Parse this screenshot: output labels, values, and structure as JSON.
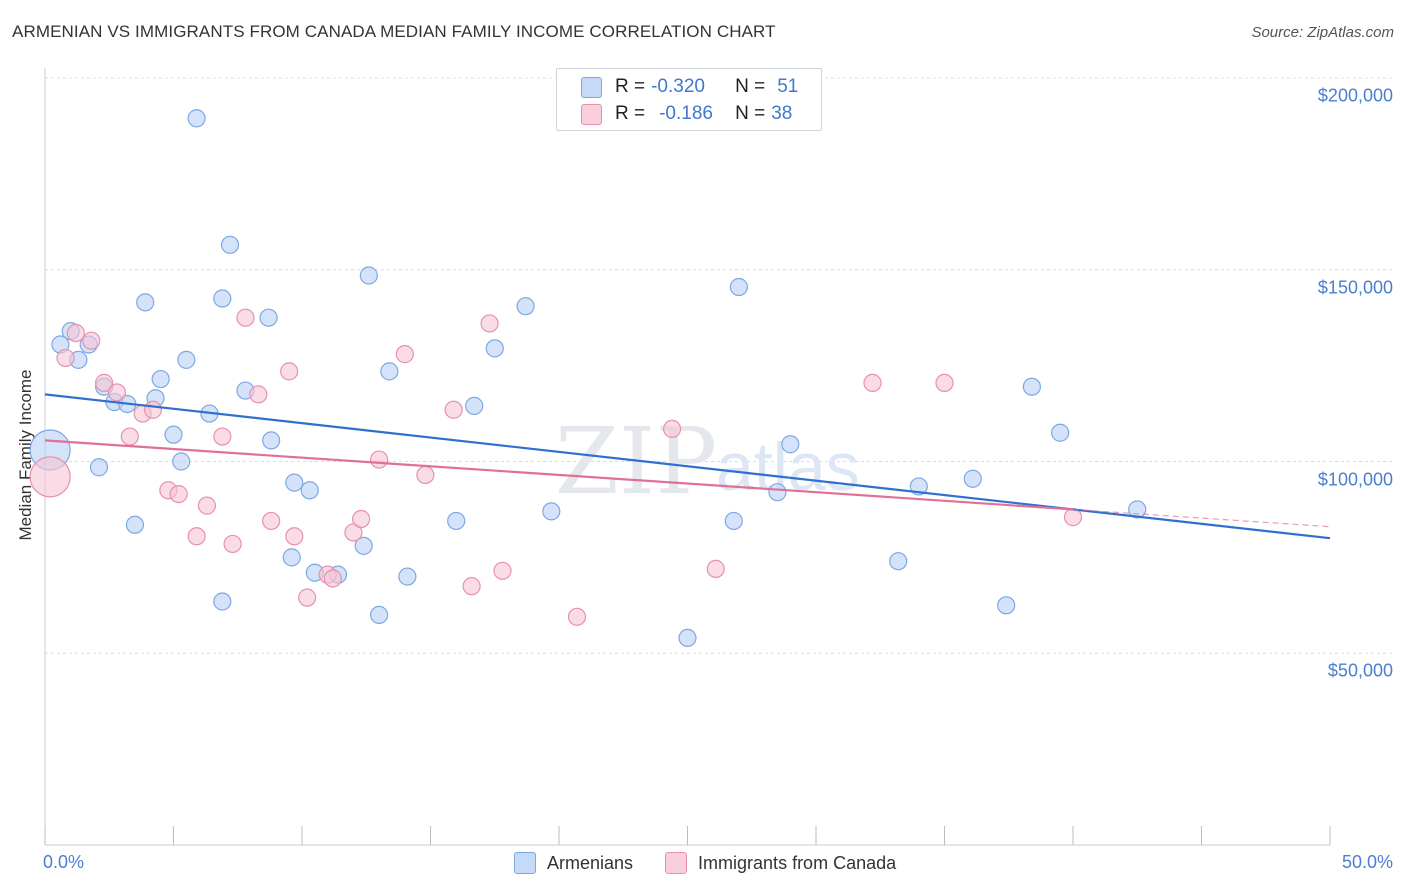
{
  "header": {
    "title": "ARMENIAN VS IMMIGRANTS FROM CANADA MEDIAN FAMILY INCOME CORRELATION CHART",
    "source": "Source: ZipAtlas.com"
  },
  "legend_top": {
    "rows": [
      {
        "r_label": "R =",
        "r_value": "-0.320",
        "n_label": "N =",
        "n_value": "51"
      },
      {
        "r_label": "R =",
        "r_value": "-0.186",
        "n_label": "N =",
        "n_value": "38"
      }
    ]
  },
  "watermark": {
    "zip": "ZIP",
    "atlas": "atlas"
  },
  "colors": {
    "armenians_fill": "#b8d1f5",
    "armenians_stroke": "#7ea8e3",
    "armenians_line": "#2f6fd0",
    "canada_fill": "#f7c5d5",
    "canada_stroke": "#e890ae",
    "canada_line": "#e07098",
    "tick_text": "#4a7fd0",
    "grid": "#d8dce2"
  },
  "chart_data": {
    "type": "scatter",
    "title": "ARMENIAN VS IMMIGRANTS FROM CANADA MEDIAN FAMILY INCOME CORRELATION CHART",
    "xlabel": "",
    "ylabel": "Median Family Income",
    "xlim": [
      0,
      50
    ],
    "ylim": [
      0,
      200000
    ],
    "x_tick_labels": [
      "0.0%",
      "50.0%"
    ],
    "y_ticks": [
      {
        "value": 50000,
        "label": "$50,000"
      },
      {
        "value": 100000,
        "label": "$100,000"
      },
      {
        "value": 150000,
        "label": "$150,000"
      },
      {
        "value": 200000,
        "label": "$200,000"
      }
    ],
    "grid": true,
    "legend_position": "bottom",
    "series": [
      {
        "name": "Armenians",
        "r": -0.32,
        "n": 51,
        "trend": {
          "x": [
            0,
            50
          ],
          "y": [
            117500,
            80000
          ]
        },
        "points": [
          {
            "x": 0.2,
            "y": 103000,
            "large": true
          },
          {
            "x": 0.6,
            "y": 130500
          },
          {
            "x": 1.0,
            "y": 134000
          },
          {
            "x": 1.3,
            "y": 126500
          },
          {
            "x": 1.7,
            "y": 130500
          },
          {
            "x": 2.1,
            "y": 98500
          },
          {
            "x": 2.3,
            "y": 119500
          },
          {
            "x": 2.7,
            "y": 115500
          },
          {
            "x": 3.2,
            "y": 115000
          },
          {
            "x": 3.5,
            "y": 83500
          },
          {
            "x": 3.9,
            "y": 141500
          },
          {
            "x": 4.3,
            "y": 116500
          },
          {
            "x": 4.5,
            "y": 121500
          },
          {
            "x": 5.0,
            "y": 107000
          },
          {
            "x": 5.3,
            "y": 100000
          },
          {
            "x": 5.5,
            "y": 126500
          },
          {
            "x": 5.9,
            "y": 189500
          },
          {
            "x": 6.4,
            "y": 112500
          },
          {
            "x": 6.9,
            "y": 142500
          },
          {
            "x": 6.9,
            "y": 63500
          },
          {
            "x": 7.2,
            "y": 156500
          },
          {
            "x": 7.8,
            "y": 118500
          },
          {
            "x": 8.7,
            "y": 137500
          },
          {
            "x": 8.8,
            "y": 105500
          },
          {
            "x": 9.6,
            "y": 75000
          },
          {
            "x": 9.7,
            "y": 94500
          },
          {
            "x": 10.3,
            "y": 92500
          },
          {
            "x": 10.5,
            "y": 71000
          },
          {
            "x": 11.4,
            "y": 70500
          },
          {
            "x": 12.4,
            "y": 78000
          },
          {
            "x": 12.6,
            "y": 148500
          },
          {
            "x": 13.0,
            "y": 60000
          },
          {
            "x": 13.4,
            "y": 123500
          },
          {
            "x": 14.1,
            "y": 70000
          },
          {
            "x": 16.0,
            "y": 84500
          },
          {
            "x": 16.7,
            "y": 114500
          },
          {
            "x": 17.5,
            "y": 129500
          },
          {
            "x": 18.7,
            "y": 140500
          },
          {
            "x": 19.7,
            "y": 87000
          },
          {
            "x": 25.0,
            "y": 54000
          },
          {
            "x": 26.8,
            "y": 84500
          },
          {
            "x": 27.0,
            "y": 145500
          },
          {
            "x": 28.5,
            "y": 92000
          },
          {
            "x": 29.0,
            "y": 104500
          },
          {
            "x": 33.2,
            "y": 74000
          },
          {
            "x": 34.0,
            "y": 93500
          },
          {
            "x": 36.1,
            "y": 95500
          },
          {
            "x": 37.4,
            "y": 62500
          },
          {
            "x": 38.4,
            "y": 119500
          },
          {
            "x": 39.5,
            "y": 107500
          },
          {
            "x": 42.5,
            "y": 87500
          }
        ]
      },
      {
        "name": "Immigrants from Canada",
        "r": -0.186,
        "n": 38,
        "trend": {
          "x": [
            0,
            40
          ],
          "y": [
            105500,
            87500
          ]
        },
        "trend_extension": {
          "x": [
            40,
            50
          ],
          "y": [
            87500,
            83000
          ]
        },
        "points": [
          {
            "x": 0.2,
            "y": 96000,
            "large": true
          },
          {
            "x": 0.8,
            "y": 127000
          },
          {
            "x": 1.2,
            "y": 133500
          },
          {
            "x": 1.8,
            "y": 131500
          },
          {
            "x": 2.3,
            "y": 120500
          },
          {
            "x": 2.8,
            "y": 118000
          },
          {
            "x": 3.3,
            "y": 106500
          },
          {
            "x": 3.8,
            "y": 112500
          },
          {
            "x": 4.2,
            "y": 113500
          },
          {
            "x": 4.8,
            "y": 92500
          },
          {
            "x": 5.2,
            "y": 91500
          },
          {
            "x": 5.9,
            "y": 80500
          },
          {
            "x": 6.3,
            "y": 88500
          },
          {
            "x": 6.9,
            "y": 106500
          },
          {
            "x": 7.3,
            "y": 78500
          },
          {
            "x": 7.8,
            "y": 137500
          },
          {
            "x": 8.3,
            "y": 117500
          },
          {
            "x": 8.8,
            "y": 84500
          },
          {
            "x": 9.5,
            "y": 123500
          },
          {
            "x": 9.7,
            "y": 80500
          },
          {
            "x": 10.2,
            "y": 64500
          },
          {
            "x": 11.0,
            "y": 70500
          },
          {
            "x": 11.2,
            "y": 69500
          },
          {
            "x": 12.0,
            "y": 81500
          },
          {
            "x": 12.3,
            "y": 85000
          },
          {
            "x": 13.0,
            "y": 100500
          },
          {
            "x": 14.0,
            "y": 128000
          },
          {
            "x": 14.8,
            "y": 96500
          },
          {
            "x": 15.9,
            "y": 113500
          },
          {
            "x": 16.6,
            "y": 67500
          },
          {
            "x": 17.3,
            "y": 136000
          },
          {
            "x": 17.8,
            "y": 71500
          },
          {
            "x": 20.7,
            "y": 59500
          },
          {
            "x": 24.4,
            "y": 108500
          },
          {
            "x": 26.1,
            "y": 72000
          },
          {
            "x": 32.2,
            "y": 120500
          },
          {
            "x": 35.0,
            "y": 120500
          },
          {
            "x": 40.0,
            "y": 85500
          }
        ]
      }
    ]
  },
  "bottom_legend": [
    "Armenians",
    "Immigrants from Canada"
  ]
}
